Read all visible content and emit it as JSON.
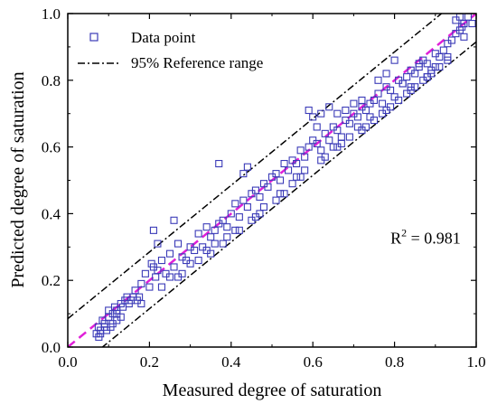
{
  "chart_data": {
    "type": "scatter",
    "title": "",
    "xlabel": "Measured degree of saturation",
    "ylabel": "Predicted degree of saturation",
    "xlim": [
      0.0,
      1.0
    ],
    "ylim": [
      0.0,
      1.0
    ],
    "xticks": [
      "0.0",
      "0.2",
      "0.4",
      "0.6",
      "0.8",
      "1.0"
    ],
    "yticks": [
      "0.0",
      "0.2",
      "0.4",
      "0.6",
      "0.8",
      "1.0"
    ],
    "grid": false,
    "legend_position": "top-left",
    "legend": [
      {
        "label": "Data point",
        "marker": "square-open"
      },
      {
        "label": "95% Reference range",
        "line": "dash-dot"
      }
    ],
    "annotation": {
      "label": "R",
      "superscript": "2",
      "value": " = 0.981",
      "x": 0.79,
      "y": 0.31
    },
    "colors": {
      "points": "#3b3bb8",
      "fit_line": "#e020d8",
      "reference": "#000000"
    },
    "reference_lines": [
      {
        "name": "upper",
        "x": [
          0.0,
          1.0
        ],
        "y": [
          0.085,
          1.085
        ]
      },
      {
        "name": "lower",
        "x": [
          0.0,
          1.0
        ],
        "y": [
          -0.085,
          0.915
        ]
      }
    ],
    "fit_line": {
      "x": [
        0.0,
        1.0
      ],
      "y": [
        0.0,
        1.0
      ]
    },
    "series": [
      {
        "x": [
          0.07,
          0.075,
          0.08,
          0.09,
          0.1,
          0.105,
          0.11,
          0.085,
          0.095,
          0.115,
          0.12,
          0.13,
          0.14,
          0.15,
          0.16,
          0.1,
          0.12,
          0.135,
          0.145,
          0.155,
          0.165,
          0.175,
          0.18,
          0.19,
          0.2,
          0.205,
          0.21,
          0.215,
          0.22,
          0.23,
          0.24,
          0.25,
          0.26,
          0.27,
          0.28,
          0.29,
          0.3,
          0.31,
          0.32,
          0.33,
          0.34,
          0.35,
          0.36,
          0.37,
          0.38,
          0.39,
          0.4,
          0.41,
          0.42,
          0.43,
          0.44,
          0.45,
          0.46,
          0.47,
          0.48,
          0.49,
          0.5,
          0.51,
          0.52,
          0.53,
          0.54,
          0.55,
          0.56,
          0.57,
          0.58,
          0.59,
          0.6,
          0.61,
          0.62,
          0.63,
          0.64,
          0.65,
          0.66,
          0.67,
          0.68,
          0.69,
          0.7,
          0.71,
          0.72,
          0.73,
          0.74,
          0.75,
          0.76,
          0.77,
          0.78,
          0.79,
          0.8,
          0.81,
          0.82,
          0.83,
          0.84,
          0.85,
          0.86,
          0.87,
          0.88,
          0.89,
          0.9,
          0.91,
          0.92,
          0.93,
          0.94,
          0.95,
          0.96,
          0.97,
          0.21,
          0.22,
          0.26,
          0.37,
          0.44,
          0.43,
          0.59,
          0.6,
          0.62,
          0.61,
          0.64,
          0.66,
          0.68,
          0.7,
          0.72,
          0.74,
          0.76,
          0.78,
          0.8,
          0.82,
          0.84,
          0.86,
          0.88,
          0.9,
          0.95,
          0.96,
          0.965,
          0.97,
          0.98,
          0.99,
          0.25,
          0.3,
          0.34,
          0.39,
          0.41,
          0.47,
          0.53,
          0.55,
          0.57,
          0.63,
          0.67,
          0.73,
          0.75,
          0.77,
          0.79,
          0.81,
          0.83,
          0.85,
          0.87,
          0.89,
          0.91,
          0.93,
          0.35,
          0.36,
          0.45,
          0.48,
          0.52,
          0.56,
          0.58,
          0.65,
          0.69,
          0.71,
          0.42,
          0.27,
          0.32,
          0.17,
          0.13,
          0.11,
          0.09,
          0.08,
          0.076,
          0.12,
          0.18,
          0.23,
          0.28,
          0.38,
          0.46,
          0.51,
          0.62,
          0.66,
          0.72,
          0.78,
          0.84,
          0.88,
          0.93,
          0.97
        ],
        "y": [
          0.04,
          0.06,
          0.05,
          0.07,
          0.09,
          0.06,
          0.1,
          0.08,
          0.05,
          0.12,
          0.11,
          0.13,
          0.14,
          0.13,
          0.15,
          0.11,
          0.1,
          0.12,
          0.15,
          0.14,
          0.17,
          0.15,
          0.19,
          0.22,
          0.18,
          0.25,
          0.24,
          0.21,
          0.23,
          0.26,
          0.22,
          0.28,
          0.24,
          0.31,
          0.27,
          0.26,
          0.3,
          0.29,
          0.34,
          0.3,
          0.36,
          0.33,
          0.35,
          0.37,
          0.38,
          0.36,
          0.4,
          0.43,
          0.39,
          0.44,
          0.42,
          0.46,
          0.47,
          0.45,
          0.49,
          0.48,
          0.51,
          0.52,
          0.5,
          0.55,
          0.53,
          0.56,
          0.55,
          0.59,
          0.57,
          0.6,
          0.62,
          0.61,
          0.59,
          0.64,
          0.62,
          0.66,
          0.65,
          0.63,
          0.68,
          0.67,
          0.7,
          0.69,
          0.72,
          0.71,
          0.69,
          0.74,
          0.76,
          0.73,
          0.78,
          0.77,
          0.75,
          0.8,
          0.79,
          0.81,
          0.83,
          0.82,
          0.84,
          0.86,
          0.85,
          0.83,
          0.88,
          0.87,
          0.89,
          0.91,
          0.92,
          0.94,
          0.95,
          0.97,
          0.35,
          0.31,
          0.38,
          0.55,
          0.54,
          0.52,
          0.71,
          0.69,
          0.7,
          0.66,
          0.72,
          0.7,
          0.71,
          0.73,
          0.74,
          0.73,
          0.8,
          0.82,
          0.86,
          0.79,
          0.77,
          0.85,
          0.81,
          0.84,
          0.98,
          0.99,
          0.96,
          0.97,
          0.99,
          0.97,
          0.21,
          0.25,
          0.29,
          0.33,
          0.35,
          0.4,
          0.46,
          0.49,
          0.51,
          0.57,
          0.61,
          0.66,
          0.68,
          0.7,
          0.72,
          0.74,
          0.76,
          0.78,
          0.8,
          0.82,
          0.84,
          0.86,
          0.28,
          0.31,
          0.38,
          0.42,
          0.46,
          0.51,
          0.53,
          0.6,
          0.63,
          0.66,
          0.35,
          0.21,
          0.26,
          0.14,
          0.09,
          0.07,
          0.06,
          0.04,
          0.03,
          0.08,
          0.13,
          0.18,
          0.22,
          0.31,
          0.39,
          0.44,
          0.56,
          0.6,
          0.65,
          0.71,
          0.78,
          0.81,
          0.87,
          0.93
        ]
      }
    ]
  }
}
